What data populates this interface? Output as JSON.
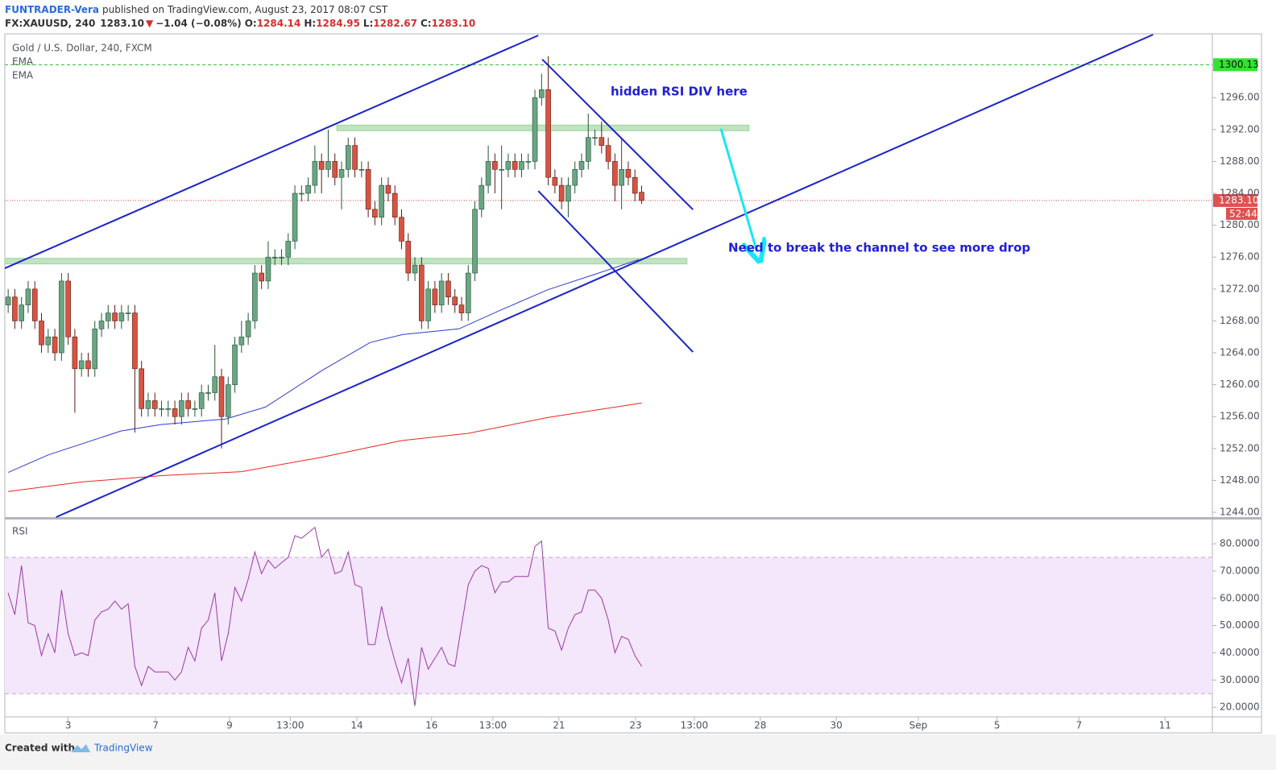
{
  "header": {
    "author": "FUNTRADER-Vera",
    "published": "published on TradingView.com, August 23, 2017 08:07 CST",
    "symbol": "FX:XAUUSD, 240",
    "last": "1283.10",
    "change": "−1.04 (−0.08%)",
    "ohlc": [
      {
        "label": "O:",
        "value": "1284.14"
      },
      {
        "label": "H:",
        "value": "1284.95"
      },
      {
        "label": "L:",
        "value": "1282.67"
      },
      {
        "label": "C:",
        "value": "1283.10"
      }
    ]
  },
  "footer": {
    "created": "Created with",
    "brand": "TradingView"
  },
  "chart_data": [
    {
      "type": "candlestick",
      "legend_title": "Gold / U.S. Dollar, 240, FXCM",
      "up_color": "#6ba583",
      "down_color": "#d75442",
      "grid": false,
      "open": [
        1270,
        1271,
        1268,
        1270,
        1272,
        1268,
        1265,
        1266,
        1264,
        1273,
        1266,
        1262,
        1263,
        1262,
        1267,
        1268,
        1269,
        1268,
        1269,
        1269,
        1262,
        1257,
        1258,
        1257,
        1257,
        1257,
        1256,
        1258,
        1257,
        1257,
        1259,
        1259,
        1261,
        1256,
        1260,
        1265,
        1266,
        1268,
        1274,
        1273,
        1276,
        1276,
        1276,
        1278,
        1284,
        1284,
        1285,
        1288,
        1287,
        1288,
        1286,
        1287,
        1290,
        1287,
        1287,
        1282,
        1281,
        1285,
        1284,
        1281,
        1278,
        1274,
        1275,
        1268,
        1272,
        1270,
        1273,
        1271,
        1270,
        1269,
        1274,
        1282,
        1285,
        1288,
        1287,
        1287,
        1288,
        1287,
        1288,
        1288,
        1296,
        1297,
        1286,
        1285,
        1283,
        1285,
        1287,
        1288,
        1291,
        1291,
        1290,
        1288,
        1285,
        1287,
        1286,
        1284.14
      ],
      "high": [
        1272,
        1272,
        1271,
        1273,
        1273,
        1269,
        1267,
        1267,
        1274,
        1274,
        1267,
        1264,
        1264,
        1268,
        1269,
        1270,
        1270,
        1270,
        1270,
        1270,
        1263,
        1259,
        1259,
        1258,
        1258,
        1258,
        1259,
        1259,
        1258,
        1260,
        1260,
        1265,
        1262,
        1261,
        1266,
        1268,
        1269,
        1275,
        1275,
        1278,
        1277,
        1277,
        1279,
        1285,
        1285,
        1286,
        1290,
        1289,
        1292,
        1289,
        1288,
        1291,
        1291,
        1288,
        1288,
        1283,
        1286,
        1286,
        1285,
        1282,
        1279,
        1276,
        1276,
        1273,
        1273,
        1274,
        1274,
        1272,
        1271,
        1275,
        1283,
        1286,
        1290,
        1289,
        1290,
        1289,
        1289,
        1289,
        1289,
        1297,
        1299,
        1301.2,
        1287,
        1286,
        1286,
        1288,
        1289,
        1294,
        1292,
        1293,
        1291,
        1289,
        1291,
        1288,
        1287,
        1284.95
      ],
      "low": [
        1269,
        1267,
        1267,
        1269,
        1267,
        1264,
        1264,
        1263,
        1263,
        1265,
        1256.5,
        1261,
        1261,
        1261,
        1266,
        1267,
        1267,
        1267,
        1268,
        1254,
        1256,
        1256,
        1256,
        1256,
        1256,
        1255,
        1255,
        1256,
        1256,
        1256,
        1258,
        1258,
        1252,
        1255,
        1259,
        1264,
        1265,
        1267,
        1272,
        1272,
        1275,
        1275,
        1275,
        1277,
        1283,
        1283,
        1284,
        1284,
        1286,
        1285,
        1282,
        1286,
        1286,
        1286,
        1281,
        1280,
        1280,
        1283,
        1280,
        1277,
        1273,
        1273,
        1267,
        1267,
        1269,
        1269,
        1270,
        1269,
        1268,
        1268,
        1273,
        1281,
        1284,
        1284,
        1282,
        1286,
        1286,
        1286,
        1287,
        1287,
        1295,
        1285,
        1284,
        1282,
        1281,
        1284,
        1286,
        1287,
        1290,
        1289,
        1287,
        1283,
        1282,
        1285,
        1283,
        1282.67
      ],
      "close": [
        1271,
        1268,
        1270,
        1272,
        1268,
        1265,
        1266,
        1264,
        1273,
        1266,
        1262,
        1263,
        1262,
        1267,
        1268,
        1269,
        1268,
        1269,
        1269,
        1262,
        1257,
        1258,
        1257,
        1257,
        1257,
        1256,
        1258,
        1257,
        1257,
        1259,
        1259,
        1261,
        1256,
        1260,
        1265,
        1266,
        1268,
        1274,
        1273,
        1276,
        1276,
        1276,
        1278,
        1284,
        1284,
        1285,
        1288,
        1287,
        1288,
        1286,
        1287,
        1290,
        1287,
        1287,
        1282,
        1281,
        1285,
        1284,
        1281,
        1278,
        1274,
        1275,
        1268,
        1272,
        1270,
        1273,
        1271,
        1270,
        1269,
        1274,
        1282,
        1285,
        1288,
        1287,
        1287,
        1288,
        1287,
        1288,
        1288,
        1296,
        1297,
        1286,
        1285,
        1283,
        1285,
        1287,
        1288,
        1291,
        1291,
        1290,
        1288,
        1285,
        1287,
        1286,
        1284,
        1283.1
      ],
      "series": [
        {
          "name": "EMA",
          "color": "#2e3bd1",
          "x": [
            0,
            6,
            16.9,
            22.9,
            32.6,
            38.6,
            47.1,
            54.3,
            59.2,
            67.6,
            73.7,
            80.9,
            88.2,
            94.6
          ],
          "values": [
            1249,
            1251.2,
            1254.2,
            1255,
            1255.7,
            1257.2,
            1261.8,
            1265.3,
            1266.3,
            1267,
            1269.3,
            1271.9,
            1273.9,
            1275.7
          ]
        },
        {
          "name": "EMA",
          "color": "#e8261d",
          "x": [
            0,
            11,
            23,
            35,
            47,
            59,
            69,
            81,
            95
          ],
          "values": [
            1246.6,
            1247.8,
            1248.6,
            1249.1,
            1250.9,
            1253,
            1253.9,
            1255.9,
            1257.7
          ]
        }
      ],
      "xlim": [
        -0.5,
        180.6
      ],
      "ylim": [
        1243.4,
        1304
      ],
      "yticks": [
        {
          "value": 1244,
          "label": "1244.00"
        },
        {
          "value": 1248,
          "label": "1248.00"
        },
        {
          "value": 1252,
          "label": "1252.00"
        },
        {
          "value": 1256,
          "label": "1256.00"
        },
        {
          "value": 1260,
          "label": "1260.00"
        },
        {
          "value": 1264,
          "label": "1264.00"
        },
        {
          "value": 1268,
          "label": "1268.00"
        },
        {
          "value": 1272,
          "label": "1272.00"
        },
        {
          "value": 1276,
          "label": "1276.00"
        },
        {
          "value": 1280,
          "label": "1280.00"
        },
        {
          "value": 1284,
          "label": "1284.00"
        },
        {
          "value": 1288,
          "label": "1288.00"
        },
        {
          "value": 1292,
          "label": "1292.00"
        },
        {
          "value": 1296,
          "label": "1296.00"
        }
      ],
      "high_line": 1300.13,
      "last_price": {
        "value": 1283.1,
        "label": "1283.10"
      },
      "countdown": "52:44",
      "lines": [
        {
          "x": [
            -0.5,
            79.5
          ],
          "y": [
            1274.6,
            1303.8
          ],
          "color": "#1b23c8"
        },
        {
          "x": [
            7.2,
            171.7
          ],
          "y": [
            1243.4,
            1303.9
          ],
          "color": "#1b23c8"
        },
        {
          "x": [
            80.1,
            102.7
          ],
          "y": [
            1300.8,
            1281.96
          ],
          "color": "#1b23c8"
        },
        {
          "x": [
            79.5,
            102.7
          ],
          "y": [
            1284.3,
            1264.1
          ],
          "color": "#1b23c8"
        }
      ],
      "zones": [
        {
          "x": [
            49.3,
            111.1
          ],
          "y": 1292.2
        },
        {
          "x": [
            -0.5,
            101.8
          ],
          "y": 1275.5
        }
      ],
      "arrow": {
        "x": [
          106.9,
          112.3
        ],
        "y": [
          1292.1,
          1276.7
        ],
        "color": "#19e6f5"
      },
      "annotations": [
        "hidden RSI DIV here",
        "Need to break the channel to see more drop"
      ]
    },
    {
      "type": "line",
      "title": "RSI",
      "color": "#9a3aa8",
      "band": [
        25,
        75
      ],
      "values": [
        62,
        54,
        72,
        51,
        50,
        39,
        47,
        40,
        63,
        47,
        39,
        40,
        39,
        52,
        55,
        56,
        59,
        56,
        58,
        35,
        28,
        35,
        33,
        33,
        33,
        30,
        33,
        42,
        37,
        49,
        52,
        62,
        37,
        47,
        64,
        59,
        67,
        77,
        69,
        74,
        71,
        73,
        75,
        83,
        82,
        84,
        86,
        75,
        78,
        69,
        70,
        77,
        65,
        64,
        43,
        43,
        57,
        46,
        37,
        29,
        38,
        20.5,
        42,
        34,
        38,
        42,
        36,
        35,
        50,
        65,
        70,
        72,
        71,
        62,
        66,
        66,
        68,
        68,
        68,
        79,
        81,
        49,
        48,
        41,
        49,
        54,
        55,
        63,
        63,
        60,
        52,
        40,
        46,
        45,
        39,
        35
      ],
      "xlim": [
        -0.5,
        180.6
      ],
      "ylim": [
        16.5,
        88.9
      ],
      "yticks": [
        {
          "value": 20,
          "label": "20.0000"
        },
        {
          "value": 30,
          "label": "30.0000"
        },
        {
          "value": 40,
          "label": "40.0000"
        },
        {
          "value": 50,
          "label": "50.0000"
        },
        {
          "value": 60,
          "label": "60.0000"
        },
        {
          "value": 70,
          "label": "70.0000"
        },
        {
          "value": 80,
          "label": "80.0000"
        }
      ],
      "xticks": [
        {
          "value": 9,
          "label": "3"
        },
        {
          "value": 22.1,
          "label": "7"
        },
        {
          "value": 33.2,
          "label": "9"
        },
        {
          "value": 42.3,
          "label": "13:00"
        },
        {
          "value": 52.3,
          "label": "14"
        },
        {
          "value": 63.5,
          "label": "16"
        },
        {
          "value": 72.7,
          "label": "13:00"
        },
        {
          "value": 82.6,
          "label": "21"
        },
        {
          "value": 94.1,
          "label": "23"
        },
        {
          "value": 102.9,
          "label": "13:00"
        },
        {
          "value": 112.8,
          "label": "28"
        },
        {
          "value": 124.2,
          "label": "30"
        },
        {
          "value": 136.5,
          "label": "Sep"
        },
        {
          "value": 148.3,
          "label": "5"
        },
        {
          "value": 160.6,
          "label": "7"
        },
        {
          "value": 173.5,
          "label": "11"
        }
      ]
    }
  ]
}
